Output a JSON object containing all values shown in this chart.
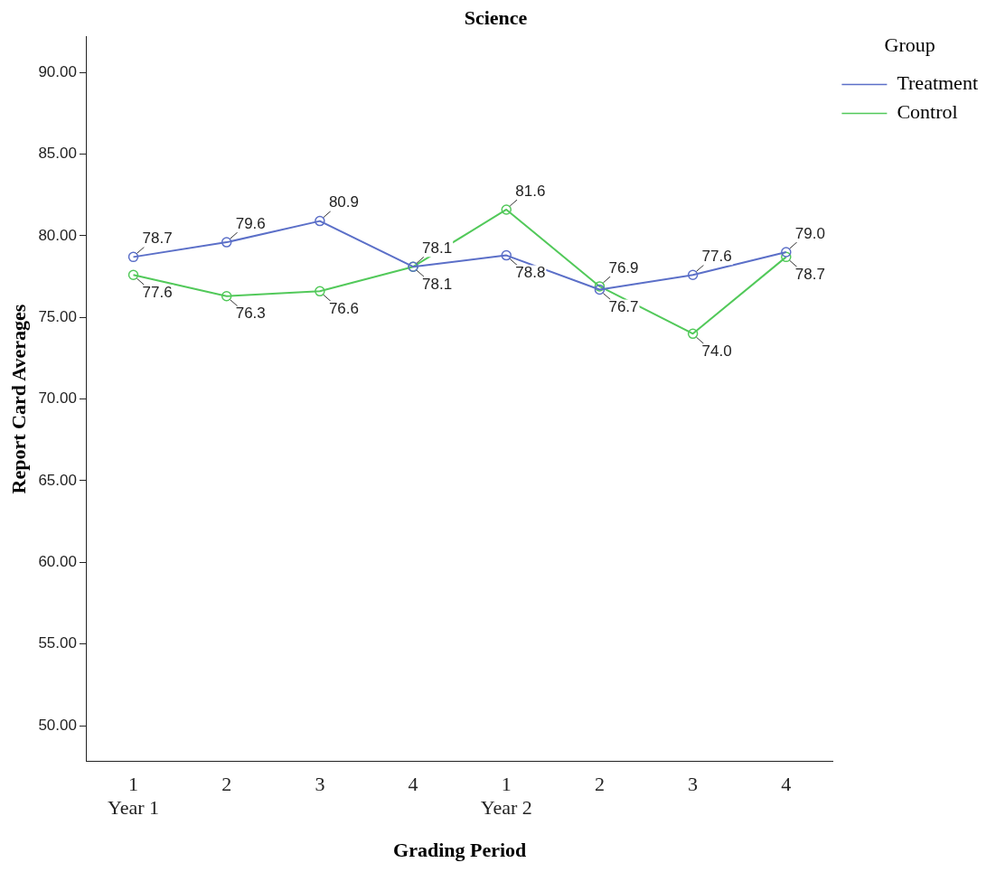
{
  "chart_data": {
    "type": "line",
    "title": "Science",
    "xlabel": "Grading Period",
    "ylabel": "Report Card Averages",
    "legend_title": "Group",
    "categories": [
      "1\nYear 1",
      "2",
      "3",
      "4",
      "1\nYear 2",
      "2",
      "3",
      "4"
    ],
    "series": [
      {
        "name": "Treatment",
        "color": "#5b6fc8",
        "values": [
          78.7,
          79.6,
          80.9,
          78.1,
          78.8,
          76.7,
          77.6,
          79.0
        ],
        "value_labels": [
          "78.7",
          "79.6",
          "80.9",
          "78.1",
          "78.8",
          "76.7",
          "77.6",
          "79.0"
        ]
      },
      {
        "name": "Control",
        "color": "#52c95a",
        "values": [
          77.6,
          76.3,
          76.6,
          78.1,
          81.6,
          76.9,
          74.0,
          78.7
        ],
        "value_labels": [
          "77.6",
          "76.3",
          "76.6",
          "78.1",
          "81.6",
          "76.9",
          "74.0",
          "78.7"
        ]
      }
    ],
    "ylim": [
      47.8,
      92.2
    ],
    "yticks": [
      {
        "value": 50,
        "label": "50.00"
      },
      {
        "value": 55,
        "label": "55.00"
      },
      {
        "value": 60,
        "label": "60.00"
      },
      {
        "value": 65,
        "label": "65.00"
      },
      {
        "value": 70,
        "label": "70.00"
      },
      {
        "value": 75,
        "label": "75.00"
      },
      {
        "value": 80,
        "label": "80.00"
      },
      {
        "value": 85,
        "label": "85.00"
      },
      {
        "value": 90,
        "label": "90.00"
      }
    ],
    "grid": false,
    "legend": "top right",
    "marker": "circle",
    "line_style": "solid"
  }
}
